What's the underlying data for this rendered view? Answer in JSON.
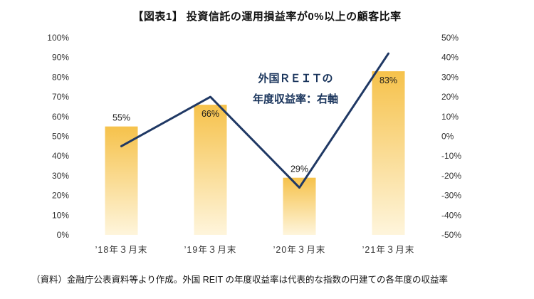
{
  "title": "【図表1】 投資信託の運用損益率が0%以上の顧客比率",
  "annotation": {
    "line1": "外国ＲＥＩＴの",
    "line2": "年度収益率：右軸"
  },
  "footnote": "（資料）金融庁公表資料等より作成。外国 REIT の年度収益率は代表的な指数の円建ての各年度の収益率",
  "chart_data": {
    "type": "bar",
    "subtype": "combo-bar-line",
    "title": "【図表1】 投資信託の運用損益率が0%以上の顧客比率",
    "categories": [
      "’18年３月末",
      "’19年３月末",
      "’20年３月末",
      "’21年３月末"
    ],
    "series": [
      {
        "name": "運用損益率が0%以上の顧客比率",
        "type": "bar",
        "axis": "left",
        "values": [
          55,
          66,
          29,
          83
        ],
        "data_labels": [
          "55%",
          "66%",
          "29%",
          "83%"
        ],
        "label_inside": [
          false,
          true,
          false,
          true
        ]
      },
      {
        "name": "外国REITの年度収益率（右軸）",
        "type": "line",
        "axis": "right",
        "values": [
          -5,
          20,
          -26,
          42
        ]
      }
    ],
    "left_axis": {
      "min": 0,
      "max": 100,
      "step": 10,
      "format": "percent"
    },
    "right_axis": {
      "min": -50,
      "max": 50,
      "step": 10,
      "format": "percent"
    },
    "grid": false,
    "legend": "none",
    "colors": {
      "bar_top": "#F6C24B",
      "bar_bottom": "#FEF5DC",
      "line": "#1F3864",
      "tick_label": "#333333"
    }
  }
}
